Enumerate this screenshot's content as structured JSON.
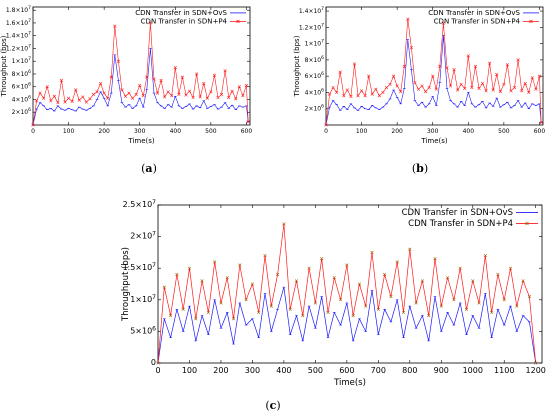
{
  "colors": {
    "ovs": "#1a1aff",
    "p4": "#ff1a1a",
    "p4_marker": "#a05a00"
  },
  "chart_data": [
    {
      "type": "line",
      "caption": "a",
      "xlabel": "Time(s)",
      "ylabel": "Throughput (bps)",
      "xlim": [
        0,
        610
      ],
      "ylim": [
        0,
        18500000
      ],
      "xticks": [
        0,
        100,
        200,
        300,
        400,
        500,
        600
      ],
      "yticks": [
        {
          "v": 2000000,
          "m": "2×10",
          "e": "6"
        },
        {
          "v": 4000000,
          "m": "4×10",
          "e": "6"
        },
        {
          "v": 6000000,
          "m": "6×10",
          "e": "6"
        },
        {
          "v": 8000000,
          "m": "8×10",
          "e": "6"
        },
        {
          "v": 10000000,
          "m": "1×10",
          "e": "7"
        },
        {
          "v": 12000000,
          "m": "1.2×10",
          "e": "7"
        },
        {
          "v": 14000000,
          "m": "1.4×10",
          "e": "7"
        },
        {
          "v": 16000000,
          "m": "1.6×10",
          "e": "7"
        },
        {
          "v": 18000000,
          "m": "1.8×10",
          "e": "7"
        }
      ],
      "legend_position": "top-right",
      "series": [
        {
          "name": "CDN Transfer in SDN+OvS",
          "x": [
            0,
            10,
            20,
            30,
            40,
            50,
            60,
            70,
            80,
            90,
            100,
            110,
            120,
            130,
            140,
            150,
            160,
            170,
            180,
            190,
            200,
            210,
            220,
            230,
            240,
            250,
            260,
            270,
            280,
            290,
            300,
            310,
            320,
            330,
            340,
            350,
            360,
            370,
            380,
            390,
            400,
            410,
            420,
            430,
            440,
            450,
            460,
            470,
            480,
            490,
            500,
            510,
            520,
            530,
            540,
            550,
            560,
            570,
            580,
            590,
            600,
            605
          ],
          "y": [
            0,
            2500000,
            3500000,
            3000000,
            2400000,
            2600000,
            2200000,
            3000000,
            2500000,
            2300000,
            2600000,
            2400000,
            2200000,
            2800000,
            2500000,
            2300000,
            2600000,
            3000000,
            4000000,
            5200000,
            4200000,
            3000000,
            5000000,
            11000000,
            7000000,
            3500000,
            2800000,
            3200000,
            2600000,
            3000000,
            4200000,
            2800000,
            5600000,
            12000000,
            5000000,
            3500000,
            3000000,
            2600000,
            3200000,
            2800000,
            4500000,
            3000000,
            2600000,
            2900000,
            3300000,
            2500000,
            3000000,
            2700000,
            3800000,
            2600000,
            2900000,
            3200000,
            2500000,
            2800000,
            3500000,
            2600000,
            3100000,
            2400000,
            3000000,
            2800000,
            3000000,
            500000
          ]
        },
        {
          "name": "CDN Transfer in SDN+P4",
          "x": [
            0,
            10,
            20,
            30,
            40,
            50,
            60,
            70,
            80,
            90,
            100,
            110,
            120,
            130,
            140,
            150,
            160,
            170,
            180,
            190,
            200,
            210,
            220,
            230,
            240,
            250,
            260,
            270,
            280,
            290,
            300,
            310,
            320,
            330,
            340,
            350,
            360,
            370,
            380,
            390,
            400,
            410,
            420,
            430,
            440,
            450,
            460,
            470,
            480,
            490,
            500,
            510,
            520,
            530,
            540,
            550,
            560,
            570,
            580,
            590,
            600,
            605
          ],
          "y": [
            0,
            3800000,
            5000000,
            4200000,
            6000000,
            3800000,
            4500000,
            3500000,
            7000000,
            3600000,
            4200000,
            3700000,
            5500000,
            3900000,
            4400000,
            3600000,
            4100000,
            4800000,
            5200000,
            6500000,
            5000000,
            4200000,
            7500000,
            15500000,
            10000000,
            5500000,
            4500000,
            5000000,
            4200000,
            4800000,
            6200000,
            4600000,
            7500000,
            16000000,
            7200000,
            5000000,
            7000000,
            4400000,
            5200000,
            4600000,
            9000000,
            4800000,
            7500000,
            4700000,
            5300000,
            4300000,
            8000000,
            4400000,
            6500000,
            4200000,
            5200000,
            7800000,
            4300000,
            4800000,
            8500000,
            4300000,
            5300000,
            4100000,
            6000000,
            4600000,
            6200000,
            500000
          ]
        }
      ]
    },
    {
      "type": "line",
      "caption": "b",
      "xlabel": "Time(s)",
      "ylabel": "Throughput (bps)",
      "xlim": [
        0,
        610
      ],
      "ylim": [
        0,
        14500000
      ],
      "xticks": [
        0,
        100,
        200,
        300,
        400,
        500,
        600
      ],
      "yticks": [
        {
          "v": 2000000,
          "m": "2×10",
          "e": "6"
        },
        {
          "v": 4000000,
          "m": "4×10",
          "e": "6"
        },
        {
          "v": 6000000,
          "m": "6×10",
          "e": "6"
        },
        {
          "v": 8000000,
          "m": "8×10",
          "e": "6"
        },
        {
          "v": 10000000,
          "m": "1×10",
          "e": "7"
        },
        {
          "v": 12000000,
          "m": "1.2×10",
          "e": "7"
        },
        {
          "v": 14000000,
          "m": "1.4×10",
          "e": "7"
        }
      ],
      "legend_position": "top-right",
      "series": [
        {
          "name": "CDN Transfer in SDN+OvS",
          "x": [
            0,
            10,
            20,
            30,
            40,
            50,
            60,
            70,
            80,
            90,
            100,
            110,
            120,
            130,
            140,
            150,
            160,
            170,
            180,
            190,
            200,
            210,
            220,
            230,
            240,
            250,
            260,
            270,
            280,
            290,
            300,
            310,
            320,
            330,
            340,
            350,
            360,
            370,
            380,
            390,
            400,
            410,
            420,
            430,
            440,
            450,
            460,
            470,
            480,
            490,
            500,
            510,
            520,
            530,
            540,
            550,
            560,
            570,
            580,
            590,
            600,
            605
          ],
          "y": [
            0,
            2200000,
            3000000,
            2500000,
            1800000,
            2300000,
            1900000,
            2600000,
            2100000,
            1800000,
            2300000,
            2000000,
            1900000,
            2400000,
            2100000,
            1900000,
            2200000,
            2600000,
            3200000,
            4300000,
            3400000,
            2600000,
            4500000,
            10500000,
            6800000,
            3000000,
            2400000,
            2800000,
            2200000,
            2600000,
            3500000,
            2400000,
            5200000,
            11000000,
            4500000,
            3000000,
            2600000,
            2200000,
            2900000,
            2400000,
            4000000,
            2600000,
            2200000,
            2500000,
            2900000,
            2100000,
            2700000,
            2300000,
            3300000,
            2200000,
            2500000,
            2800000,
            2100000,
            2400000,
            3000000,
            2200000,
            2700000,
            2000000,
            2600000,
            2400000,
            2600000,
            300000
          ]
        },
        {
          "name": "CDN Transfer in SDN+P4",
          "x": [
            0,
            10,
            20,
            30,
            40,
            50,
            60,
            70,
            80,
            90,
            100,
            110,
            120,
            130,
            140,
            150,
            160,
            170,
            180,
            190,
            200,
            210,
            220,
            230,
            240,
            250,
            260,
            270,
            280,
            290,
            300,
            310,
            320,
            330,
            340,
            350,
            360,
            370,
            380,
            390,
            400,
            410,
            420,
            430,
            440,
            450,
            460,
            470,
            480,
            490,
            500,
            510,
            520,
            530,
            540,
            550,
            560,
            570,
            580,
            590,
            600,
            605
          ],
          "y": [
            0,
            3800000,
            4600000,
            4000000,
            6500000,
            3600000,
            4300000,
            3500000,
            7500000,
            3600000,
            4200000,
            3600000,
            6000000,
            3800000,
            4400000,
            3600000,
            4000000,
            4600000,
            5000000,
            6000000,
            4800000,
            4100000,
            7200000,
            13000000,
            9500000,
            5200000,
            4400000,
            4800000,
            4100000,
            4600000,
            6000000,
            4400000,
            7200000,
            12500000,
            7000000,
            4800000,
            6800000,
            4300000,
            5000000,
            4500000,
            8500000,
            4600000,
            7200000,
            4500000,
            5100000,
            4200000,
            7600000,
            4300000,
            6200000,
            4100000,
            5000000,
            7400000,
            4200000,
            4600000,
            8000000,
            4200000,
            5100000,
            4000000,
            5800000,
            4400000,
            6000000,
            300000
          ]
        }
      ]
    },
    {
      "type": "line",
      "caption": "c",
      "xlabel": "Time(s)",
      "ylabel": "Throughput (bps)",
      "xlim": [
        0,
        1220
      ],
      "ylim": [
        0,
        25000000
      ],
      "xticks": [
        0,
        100,
        200,
        300,
        400,
        500,
        600,
        700,
        800,
        900,
        1000,
        1100,
        1200
      ],
      "yticks": [
        {
          "v": 0,
          "m": "0",
          "e": ""
        },
        {
          "v": 5000000,
          "m": "5×10",
          "e": "6"
        },
        {
          "v": 10000000,
          "m": "1×10",
          "e": "7"
        },
        {
          "v": 15000000,
          "m": "1.5×10",
          "e": "7"
        },
        {
          "v": 20000000,
          "m": "2×10",
          "e": "7"
        },
        {
          "v": 25000000,
          "m": "2.5×10",
          "e": "7"
        }
      ],
      "legend_position": "top-right",
      "series": [
        {
          "name": "CDN Transfer in SDN+OvS",
          "x": [
            0,
            20,
            40,
            60,
            80,
            100,
            120,
            140,
            160,
            180,
            200,
            220,
            240,
            260,
            280,
            300,
            320,
            340,
            360,
            380,
            400,
            420,
            440,
            460,
            480,
            500,
            520,
            540,
            560,
            580,
            600,
            620,
            640,
            660,
            680,
            700,
            720,
            740,
            760,
            780,
            800,
            820,
            840,
            860,
            880,
            900,
            920,
            940,
            960,
            980,
            1000,
            1020,
            1040,
            1060,
            1080,
            1100,
            1120,
            1140,
            1160,
            1180,
            1200
          ],
          "y": [
            0,
            7000000,
            4000000,
            8500000,
            5000000,
            9000000,
            3500000,
            7500000,
            4500000,
            10000000,
            5500000,
            8000000,
            3000000,
            9500000,
            6000000,
            7000000,
            4000000,
            11000000,
            5000000,
            8500000,
            12000000,
            4500000,
            7500000,
            3500000,
            9000000,
            5500000,
            10500000,
            4000000,
            8000000,
            6000000,
            9500000,
            3500000,
            7000000,
            5000000,
            11500000,
            4500000,
            8500000,
            6500000,
            10000000,
            4000000,
            9000000,
            5500000,
            7500000,
            3500000,
            10500000,
            5000000,
            8000000,
            6000000,
            9500000,
            4500000,
            7500000,
            5500000,
            11000000,
            4000000,
            8500000,
            6000000,
            9000000,
            5000000,
            7500000,
            6500000,
            0
          ]
        },
        {
          "name": "CDN Transfer in SDN+P4",
          "x": [
            0,
            20,
            40,
            60,
            80,
            100,
            120,
            140,
            160,
            180,
            200,
            220,
            240,
            260,
            280,
            300,
            320,
            340,
            360,
            380,
            400,
            420,
            440,
            460,
            480,
            500,
            520,
            540,
            560,
            580,
            600,
            620,
            640,
            660,
            680,
            700,
            720,
            740,
            760,
            780,
            800,
            820,
            840,
            860,
            880,
            900,
            920,
            940,
            960,
            980,
            1000,
            1020,
            1040,
            1060,
            1080,
            1100,
            1120,
            1140,
            1160,
            1180,
            1200
          ],
          "y": [
            0,
            12000000,
            7500000,
            14000000,
            8500000,
            15000000,
            7000000,
            13000000,
            8000000,
            16000000,
            9500000,
            13500000,
            7000000,
            15500000,
            10000000,
            12500000,
            8000000,
            17000000,
            9000000,
            14000000,
            22000000,
            8500000,
            13000000,
            7500000,
            15000000,
            9500000,
            16500000,
            8000000,
            13500000,
            10000000,
            15500000,
            7500000,
            12500000,
            9000000,
            17500000,
            8500000,
            14000000,
            10500000,
            16000000,
            8000000,
            18000000,
            9500000,
            13000000,
            7500000,
            16500000,
            9000000,
            13500000,
            10000000,
            15000000,
            8500000,
            13000000,
            9500000,
            17000000,
            8000000,
            14000000,
            10000000,
            15000000,
            9000000,
            13000000,
            10500000,
            0
          ]
        }
      ]
    }
  ]
}
